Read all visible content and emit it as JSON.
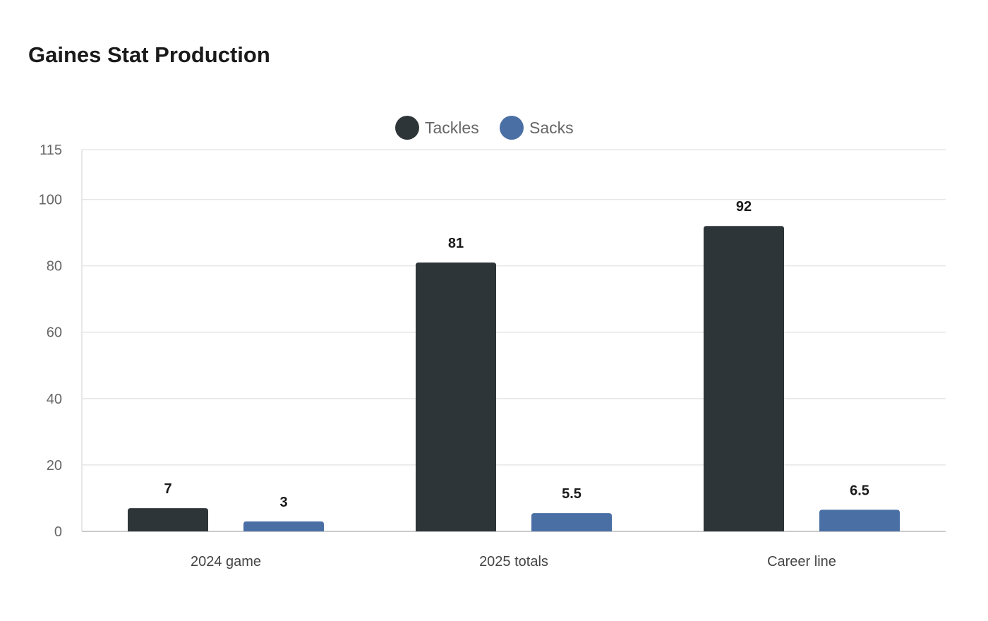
{
  "chart_data": {
    "type": "bar",
    "title": "Gaines Stat Production",
    "categories": [
      "2024 game",
      "2025 totals",
      "Career line"
    ],
    "series": [
      {
        "name": "Tackles",
        "values": [
          7,
          81,
          92
        ],
        "labels": [
          "7",
          "81",
          "92"
        ],
        "color": "#2e3538"
      },
      {
        "name": "Sacks",
        "values": [
          3,
          5.5,
          6.5
        ],
        "labels": [
          "3",
          "5.5",
          "6.5"
        ],
        "color": "#4a6fa5"
      }
    ],
    "y_ticks": [
      0,
      20,
      40,
      60,
      80,
      100,
      115
    ],
    "y_tick_labels": [
      "0",
      "20",
      "40",
      "60",
      "80",
      "100",
      "115"
    ],
    "ylim": [
      0,
      115
    ],
    "xlabel": "",
    "ylabel": "",
    "grid": true,
    "legend_position": "top-center"
  }
}
